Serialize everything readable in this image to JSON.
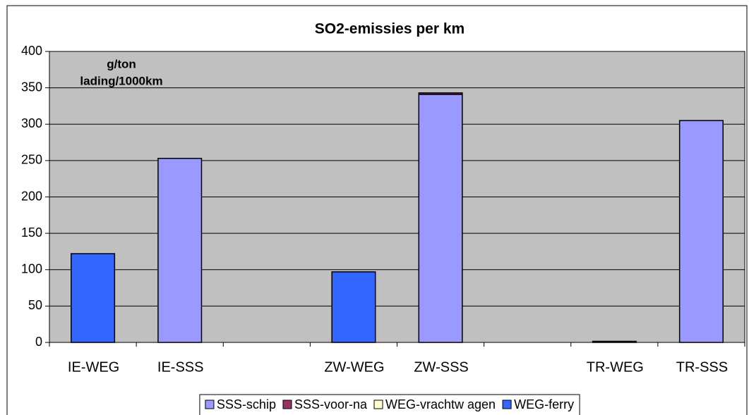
{
  "chart_data": {
    "type": "bar",
    "stacked": true,
    "title": "SO2-emissies per km",
    "annotation": [
      "g/ton",
      "lading/1000km"
    ],
    "categories": [
      "IE-WEG",
      "IE-SSS",
      null,
      "ZW-WEG",
      "ZW-SSS",
      null,
      "TR-WEG",
      "TR-SSS"
    ],
    "series": [
      {
        "name": "SSS-schip",
        "color": "#9999ff",
        "values": [
          0,
          253,
          null,
          0,
          341,
          null,
          0,
          305
        ]
      },
      {
        "name": "SSS-voor-na",
        "color": "#993366",
        "values": [
          0,
          0,
          null,
          0,
          2,
          null,
          0,
          0
        ]
      },
      {
        "name": "WEG-vrachtw agen",
        "color": "#ffffcc",
        "values": [
          0,
          0,
          null,
          0,
          0,
          null,
          1.5,
          0
        ]
      },
      {
        "name": "WEG-ferry",
        "color": "#3366ff",
        "values": [
          122,
          0,
          null,
          97,
          0,
          null,
          0,
          0
        ]
      }
    ],
    "ylim": [
      0,
      400
    ],
    "yticks": [
      0,
      50,
      100,
      150,
      200,
      250,
      300,
      350,
      400
    ],
    "grid": true,
    "plot_background": "#c0c0c0",
    "legend": "bottom"
  }
}
